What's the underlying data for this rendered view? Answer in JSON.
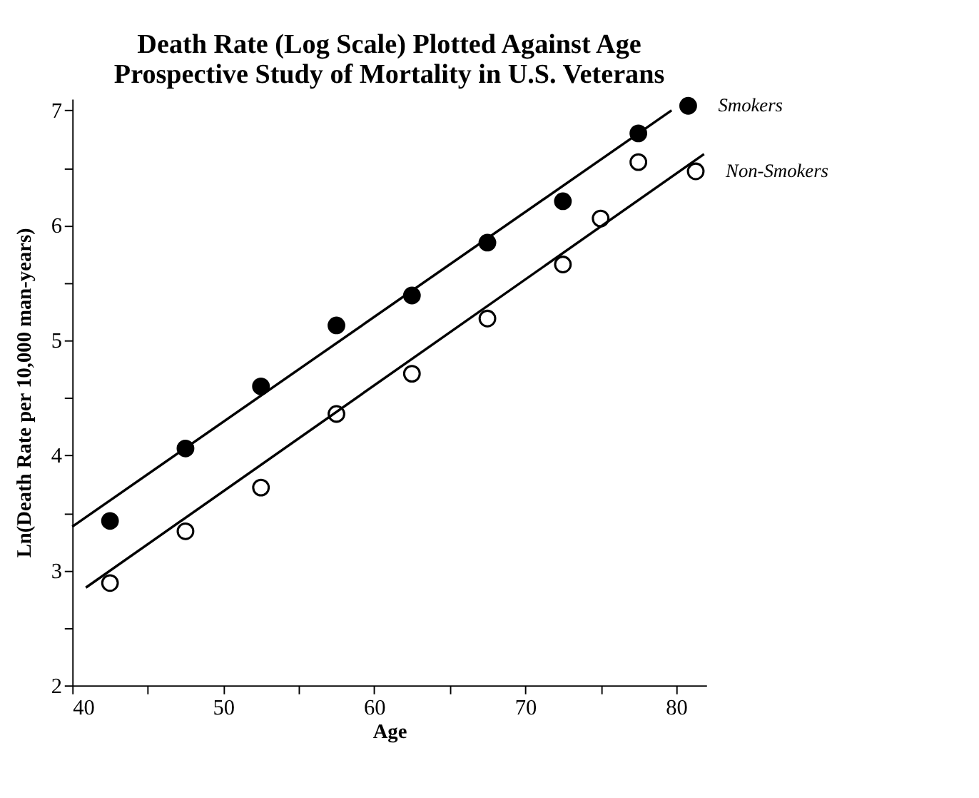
{
  "chart_data": {
    "type": "scatter",
    "title": [
      "Death Rate (Log Scale) Plotted Against Age",
      "Prospective Study of Mortality in U.S. Veterans"
    ],
    "xlabel": "Age",
    "ylabel": "Ln(Death  Rate  per  10,000  man-years)",
    "xlim": [
      40,
      82
    ],
    "xticks": [
      40,
      {
        "value": 45,
        "label": null
      },
      50,
      {
        "value": 55,
        "label": null
      },
      60,
      {
        "value": 65,
        "label": null
      },
      70,
      {
        "value": 75,
        "label": null
      },
      80
    ],
    "ylim": [
      2,
      7.1
    ],
    "yticks": [
      2,
      {
        "value": 2.5,
        "label": null
      },
      3,
      {
        "value": 3.5,
        "label": null
      },
      4,
      {
        "value": 4.5,
        "label": null
      },
      5,
      {
        "value": 5.5,
        "label": null
      },
      6,
      {
        "value": 6.5,
        "label": null
      },
      7
    ],
    "grid": false,
    "series": [
      {
        "name": "Smokers",
        "marker": "circle",
        "color": "#000000",
        "x": [
          42.5,
          47.5,
          52.5,
          57.5,
          62.5,
          67.5,
          72.5,
          77.5,
          80.8
        ],
        "values": [
          3.43,
          4.06,
          4.6,
          5.13,
          5.39,
          5.85,
          6.21,
          6.8,
          7.04
        ]
      },
      {
        "name": "Non-Smokers",
        "marker": "circle",
        "color": "#ffffff",
        "x": [
          42.5,
          47.5,
          52.5,
          57.5,
          62.5,
          67.5,
          72.5,
          75,
          77.5,
          81.3
        ],
        "values": [
          2.89,
          3.34,
          3.72,
          4.36,
          4.71,
          5.19,
          5.66,
          6.06,
          6.55,
          6.47
        ]
      },
      {
        "type": "line",
        "color": "#000000",
        "line_style": "solid",
        "x": [
          40,
          79.7
        ],
        "values": [
          3.38,
          7.0
        ]
      },
      {
        "type": "line",
        "color": "#000000",
        "line_style": "solid",
        "x": [
          40.9,
          81.85
        ],
        "values": [
          2.85,
          6.62
        ]
      }
    ]
  }
}
